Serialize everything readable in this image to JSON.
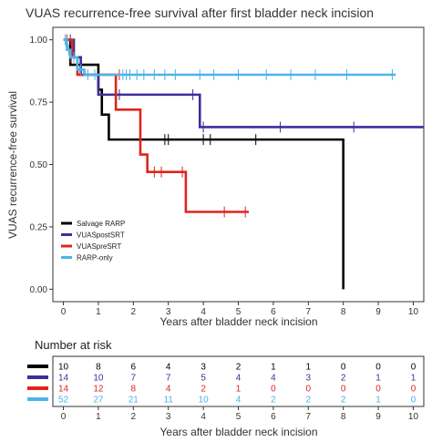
{
  "chart_data": {
    "type": "line",
    "title": "VUAS recurrence-free survival after first bladder neck incision",
    "xlabel": "Years after bladder neck incision",
    "ylabel": "VUAS recurrence-free survival",
    "xlim": [
      -0.3,
      10.3
    ],
    "ylim": [
      -0.05,
      1.05
    ],
    "x_ticks": [
      "0",
      "1",
      "2",
      "3",
      "4",
      "5",
      "6",
      "7",
      "8",
      "9",
      "10"
    ],
    "y_ticks": [
      "0.00",
      "0.25",
      "0.50",
      "0.75",
      "1.00"
    ],
    "grid": false,
    "legend_position": "bottom-left",
    "series": [
      {
        "name": "Salvage RARP",
        "color": "#000000",
        "steps": [
          [
            0,
            1.0
          ],
          [
            0.2,
            0.9
          ],
          [
            1.0,
            0.8
          ],
          [
            1.1,
            0.7
          ],
          [
            1.3,
            0.6
          ],
          [
            8.0,
            0.6
          ],
          [
            8.0,
            0.0
          ]
        ],
        "censored": [
          [
            2.9,
            0.6
          ],
          [
            3.0,
            0.6
          ],
          [
            4.0,
            0.6
          ],
          [
            4.2,
            0.6
          ],
          [
            5.5,
            0.6
          ]
        ]
      },
      {
        "name": "VUASpostSRT",
        "color": "#3b2f9c",
        "steps": [
          [
            0,
            1.0
          ],
          [
            0.3,
            0.93
          ],
          [
            0.5,
            0.86
          ],
          [
            1.0,
            0.78
          ],
          [
            3.9,
            0.78
          ],
          [
            3.9,
            0.65
          ],
          [
            10.3,
            0.65
          ]
        ],
        "censored": [
          [
            0.2,
            1.0
          ],
          [
            1.6,
            0.78
          ],
          [
            3.7,
            0.78
          ],
          [
            4.0,
            0.65
          ],
          [
            6.2,
            0.65
          ],
          [
            8.3,
            0.65
          ]
        ]
      },
      {
        "name": "VUASpreSRT",
        "color": "#e0241c",
        "steps": [
          [
            0,
            1.0
          ],
          [
            0.25,
            0.93
          ],
          [
            0.4,
            0.86
          ],
          [
            1.5,
            0.86
          ],
          [
            1.5,
            0.72
          ],
          [
            2.2,
            0.72
          ],
          [
            2.2,
            0.54
          ],
          [
            2.4,
            0.54
          ],
          [
            2.4,
            0.47
          ],
          [
            3.5,
            0.47
          ],
          [
            3.5,
            0.31
          ],
          [
            5.3,
            0.31
          ]
        ],
        "censored": [
          [
            0.1,
            1.0
          ],
          [
            0.2,
            0.93
          ],
          [
            1.6,
            0.86
          ],
          [
            2.6,
            0.47
          ],
          [
            2.8,
            0.47
          ],
          [
            3.4,
            0.47
          ],
          [
            4.6,
            0.31
          ],
          [
            5.2,
            0.31
          ]
        ]
      },
      {
        "name": "RARP-only",
        "color": "#4db4e6",
        "steps": [
          [
            0,
            1.0
          ],
          [
            0.1,
            0.96
          ],
          [
            0.2,
            0.93
          ],
          [
            0.4,
            0.88
          ],
          [
            0.6,
            0.86
          ],
          [
            9.5,
            0.86
          ]
        ],
        "censored": [
          [
            0.05,
            1.0
          ],
          [
            0.15,
            0.96
          ],
          [
            0.3,
            0.93
          ],
          [
            0.5,
            0.88
          ],
          [
            0.7,
            0.86
          ],
          [
            0.9,
            0.86
          ],
          [
            1.7,
            0.86
          ],
          [
            1.8,
            0.86
          ],
          [
            1.9,
            0.86
          ],
          [
            2.1,
            0.86
          ],
          [
            2.3,
            0.86
          ],
          [
            2.6,
            0.86
          ],
          [
            2.9,
            0.86
          ],
          [
            3.2,
            0.86
          ],
          [
            3.9,
            0.86
          ],
          [
            4.3,
            0.86
          ],
          [
            5.0,
            0.86
          ],
          [
            5.8,
            0.86
          ],
          [
            6.5,
            0.86
          ],
          [
            7.2,
            0.86
          ],
          [
            8.1,
            0.86
          ],
          [
            9.4,
            0.86
          ]
        ]
      }
    ],
    "risk_table": {
      "title": "Number at risk",
      "xlabel": "Years after bladder neck incision",
      "times": [
        "0",
        "1",
        "2",
        "3",
        "4",
        "5",
        "6",
        "7",
        "8",
        "9",
        "10"
      ],
      "rows": [
        {
          "color": "#000000",
          "values": [
            "10",
            "8",
            "6",
            "4",
            "3",
            "2",
            "1",
            "1",
            "0",
            "0",
            "0"
          ]
        },
        {
          "color": "#3b2f9c",
          "values": [
            "14",
            "10",
            "7",
            "7",
            "5",
            "4",
            "4",
            "3",
            "2",
            "1",
            "1"
          ]
        },
        {
          "color": "#e0241c",
          "values": [
            "14",
            "12",
            "8",
            "4",
            "2",
            "1",
            "0",
            "0",
            "0",
            "0",
            "0"
          ]
        },
        {
          "color": "#4db4e6",
          "values": [
            "52",
            "27",
            "21",
            "11",
            "10",
            "4",
            "2",
            "2",
            "2",
            "1",
            "0"
          ]
        }
      ]
    }
  }
}
